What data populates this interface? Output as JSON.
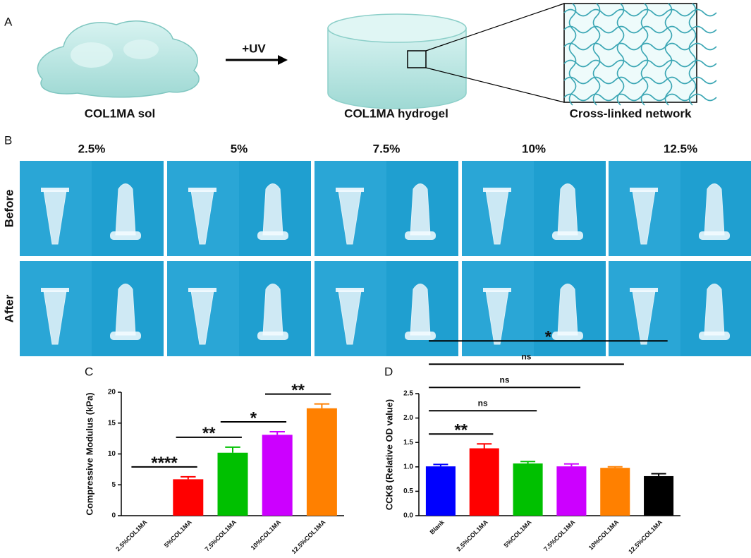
{
  "panel_a": {
    "label": "A",
    "sol": "COL1MA sol",
    "arrow": "+UV",
    "hydrogel": "COL1MA hydrogel",
    "network": "Cross-linked network"
  },
  "panel_b": {
    "label": "B",
    "concentrations": [
      "2.5%",
      "5%",
      "7.5%",
      "10%",
      "12.5%"
    ],
    "rows": [
      "Before",
      "After"
    ]
  },
  "chart_data": [
    {
      "type": "bar",
      "panel": "C",
      "ylabel": "Compressive Modulus (kPa)",
      "categories": [
        "2.5%COL1MA",
        "5%COL1MA",
        "7.5%COL1MA",
        "10%COL1MA",
        "12.5%COL1MA"
      ],
      "values": [
        0,
        5.9,
        10.2,
        13.1,
        17.4
      ],
      "errors": [
        0,
        0.4,
        0.9,
        0.5,
        0.7
      ],
      "colors": [
        "#ffffff",
        "#ff0000",
        "#00c000",
        "#cc00ff",
        "#ff8000"
      ],
      "ylim": [
        0,
        20
      ],
      "yticks": [
        0,
        5,
        10,
        15,
        20
      ],
      "annotations": [
        {
          "label": "****",
          "from": 0,
          "to": 1
        },
        {
          "label": "**",
          "from": 1,
          "to": 2
        },
        {
          "label": "*",
          "from": 2,
          "to": 3
        },
        {
          "label": "**",
          "from": 3,
          "to": 4
        }
      ]
    },
    {
      "type": "bar",
      "panel": "D",
      "ylabel": "CCK8 (Relative OD value)",
      "categories": [
        "Blank",
        "2.5%COL1MA",
        "5%COL1MA",
        "7.5%COL1MA",
        "10%COL1MA",
        "12.5%COL1MA"
      ],
      "values": [
        1.01,
        1.38,
        1.07,
        1.01,
        0.98,
        0.81
      ],
      "errors": [
        0.04,
        0.09,
        0.04,
        0.05,
        0.02,
        0.05
      ],
      "colors": [
        "#0000ff",
        "#ff0000",
        "#00c000",
        "#cc00ff",
        "#ff8000",
        "#000000"
      ],
      "ylim": [
        0,
        2.5
      ],
      "yticks": [
        {
          "value": 0,
          "label": "0.0"
        },
        0.5,
        {
          "value": 1,
          "label": "1.0"
        },
        1.5,
        {
          "value": 2,
          "label": "2.0"
        },
        2.5
      ],
      "annotations": [
        {
          "label": "**",
          "from": 0,
          "to": 1
        },
        {
          "label": "ns",
          "from": 0,
          "to": 2
        },
        {
          "label": "ns",
          "from": 0,
          "to": 3
        },
        {
          "label": "ns",
          "from": 0,
          "to": 4
        },
        {
          "label": "*",
          "from": 0,
          "to": 5
        }
      ]
    }
  ]
}
